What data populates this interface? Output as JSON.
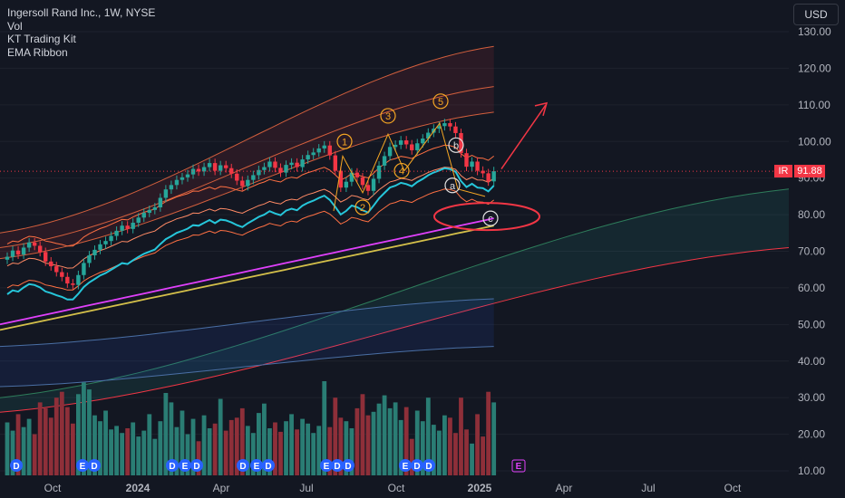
{
  "legend": {
    "title": "Ingersoll Rand Inc., 1W, NYSE",
    "indicators": [
      "Vol",
      "KT Trading Kit",
      "EMA Ribbon"
    ]
  },
  "currency_button": "USD",
  "last_price": {
    "symbol": "IR",
    "value": "91.88",
    "color": "#f23645"
  },
  "colors": {
    "background": "#131722",
    "up": "#26a69a",
    "down": "#f23645",
    "vol_up": "#2a7d74",
    "vol_down": "#8e2f39",
    "annotation": "#f23645",
    "wave_label": "#f5a623"
  },
  "chart_data": {
    "type": "candlestick",
    "interval": "1W",
    "y_axis": {
      "range": [
        10,
        135
      ],
      "ticks": [
        "130.00",
        "120.00",
        "110.00",
        "100.00",
        "90.00",
        "80.00",
        "70.00",
        "60.00",
        "50.00",
        "40.00",
        "30.00",
        "20.00",
        "10.00"
      ]
    },
    "x_axis": {
      "ticks": [
        {
          "label": "Oct",
          "date": "2023-10-01"
        },
        {
          "label": "2024",
          "date": "2024-01-01"
        },
        {
          "label": "Apr",
          "date": "2024-04-01"
        },
        {
          "label": "Jul",
          "date": "2024-07-01"
        },
        {
          "label": "Oct",
          "date": "2024-10-01"
        },
        {
          "label": "2025",
          "date": "2025-01-01"
        },
        {
          "label": "Apr",
          "date": "2025-04-01"
        },
        {
          "label": "Jul",
          "date": "2025-07-01"
        },
        {
          "label": "Oct",
          "date": "2025-10-01"
        }
      ]
    },
    "close": [
      68.5,
      70.2,
      69.1,
      71.0,
      72.4,
      71.5,
      69.8,
      67.2,
      65.9,
      64.3,
      63.0,
      61.2,
      60.8,
      63.5,
      66.8,
      68.9,
      70.4,
      71.9,
      72.8,
      74.2,
      75.6,
      77.0,
      76.1,
      77.8,
      79.2,
      80.5,
      81.3,
      82.0,
      84.6,
      86.9,
      88.1,
      89.5,
      90.2,
      91.0,
      92.5,
      91.8,
      93.0,
      94.1,
      92.0,
      93.5,
      92.7,
      91.2,
      89.3,
      87.8,
      89.5,
      90.8,
      92.2,
      93.0,
      94.5,
      92.8,
      91.5,
      93.6,
      94.2,
      93.0,
      95.1,
      96.3,
      97.0,
      98.1,
      98.9,
      96.2,
      92.0,
      87.4,
      89.0,
      91.5,
      90.2,
      88.1,
      86.5,
      89.8,
      93.4,
      96.0,
      98.5,
      99.1,
      100.3,
      99.2,
      97.6,
      99.5,
      100.8,
      102.4,
      103.5,
      104.2,
      105.0,
      104.1,
      102.3,
      96.8,
      93.1,
      94.5,
      92.0,
      91.3,
      89.1,
      91.88
    ],
    "volume_relative": [
      0.45,
      0.38,
      0.52,
      0.41,
      0.48,
      0.35,
      0.62,
      0.57,
      0.49,
      0.66,
      0.71,
      0.58,
      0.44,
      0.69,
      0.79,
      0.73,
      0.51,
      0.46,
      0.55,
      0.39,
      0.42,
      0.36,
      0.4,
      0.45,
      0.33,
      0.38,
      0.52,
      0.31,
      0.46,
      0.7,
      0.62,
      0.41,
      0.55,
      0.35,
      0.48,
      0.29,
      0.51,
      0.4,
      0.44,
      0.65,
      0.38,
      0.47,
      0.49,
      0.57,
      0.42,
      0.36,
      0.53,
      0.61,
      0.4,
      0.45,
      0.37,
      0.46,
      0.52,
      0.39,
      0.48,
      0.44,
      0.36,
      0.42,
      0.8,
      0.41,
      0.66,
      0.49,
      0.46,
      0.4,
      0.57,
      0.69,
      0.51,
      0.54,
      0.61,
      0.68,
      0.57,
      0.62,
      0.47,
      0.58,
      0.31,
      0.55,
      0.46,
      0.66,
      0.43,
      0.38,
      0.51,
      0.49,
      0.36,
      0.66,
      0.39,
      0.27,
      0.52,
      0.33,
      0.71,
      0.62
    ],
    "ema_ribbon": [
      {
        "values_start": 72.0,
        "values_end": 96.0,
        "color": "#ff7043"
      },
      {
        "values_start": 66.0,
        "values_end": 90.0,
        "color": "#ff8a65"
      },
      {
        "values_start": 60.0,
        "values_end": 84.0,
        "color": "#ff7043"
      }
    ],
    "moving_averages": [
      {
        "color": "#e040fb",
        "start": 50.0,
        "end": 79.0
      },
      {
        "color": "#d4c04a",
        "start": 48.5,
        "end": 77.0
      }
    ],
    "bands_upper": [
      {
        "start": 75.0,
        "end": 126.0
      },
      {
        "start": 71.0,
        "end": 115.0
      },
      {
        "start": 68.0,
        "end": 108.0
      }
    ],
    "bands_lower": [
      {
        "start": 61.0,
        "end": 84.0
      },
      {
        "start": 55.0,
        "end": 79.0
      }
    ],
    "cloud": {
      "start": [
        30,
        26
      ],
      "end": [
        87,
        71
      ]
    },
    "wave_labels": [
      "1",
      "2",
      "3",
      "4",
      "5",
      "a",
      "b",
      "c"
    ],
    "event_markers": [
      "D",
      "E",
      "D",
      "D",
      "E",
      "D",
      "D",
      "E",
      "D",
      "E",
      "D",
      "D",
      "E",
      "D",
      "D",
      "E"
    ]
  }
}
